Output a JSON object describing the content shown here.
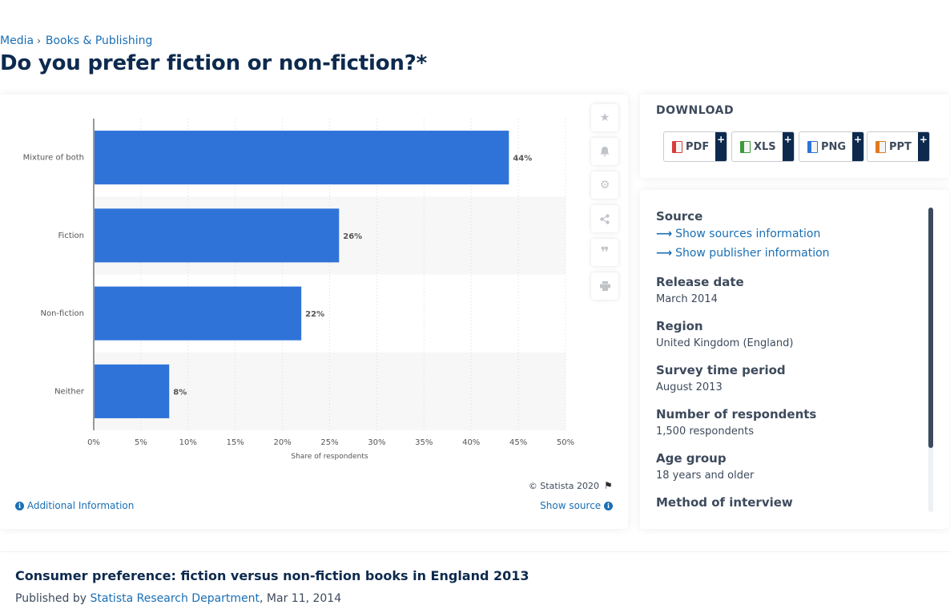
{
  "breadcrumb": [
    "Media",
    "Books & Publishing"
  ],
  "page_title": "Do you prefer fiction or non-fiction?*",
  "chart_data": {
    "type": "bar",
    "orientation": "horizontal",
    "categories": [
      "Mixture of both",
      "Fiction",
      "Non-fiction",
      "Neither"
    ],
    "values": [
      44,
      26,
      22,
      8
    ],
    "value_labels": [
      "44%",
      "26%",
      "22%",
      "8%"
    ],
    "xlim": [
      0,
      50
    ],
    "xticks": [
      "0%",
      "5%",
      "10%",
      "15%",
      "20%",
      "25%",
      "30%",
      "35%",
      "40%",
      "45%",
      "50%"
    ],
    "xlabel": "Share of respondents",
    "ylabel": "",
    "grid": true,
    "bar_color": "#2f73d9"
  },
  "chart_tools": [
    "star-icon",
    "bell-icon",
    "gear-icon",
    "share-icon",
    "quote-icon",
    "print-icon"
  ],
  "copyright": "© Statista 2020",
  "additional_info": "Additional Information",
  "show_source": "Show source",
  "download": {
    "title": "DOWNLOAD",
    "buttons": [
      {
        "label": "PDF",
        "color": "#d93b3b"
      },
      {
        "label": "XLS",
        "color": "#3a9a3a"
      },
      {
        "label": "PNG",
        "color": "#2f73d9"
      },
      {
        "label": "PPT",
        "color": "#e07a1f"
      }
    ],
    "plus": "+"
  },
  "details": {
    "source_label": "Source",
    "sources_link": "Show sources information",
    "publisher_link": "Show publisher information",
    "release_label": "Release date",
    "release_value": "March 2014",
    "region_label": "Region",
    "region_value": "United Kingdom (England)",
    "survey_label": "Survey time period",
    "survey_value": "August 2013",
    "respondents_label": "Number of respondents",
    "respondents_value": "1,500 respondents",
    "age_label": "Age group",
    "age_value": "18 years and older",
    "method_label": "Method of interview"
  },
  "statistic_title": "Consumer preference: fiction versus non-fiction books in England 2013",
  "published": {
    "prefix": "Published by",
    "author": "Statista Research Department",
    "date": ", Mar 11, 2014"
  }
}
